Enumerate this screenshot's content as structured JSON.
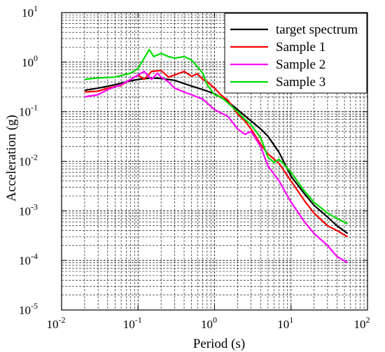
{
  "chart_data": {
    "type": "line",
    "title": "",
    "xlabel": "Period (s)",
    "ylabel": "Acceleration (g)",
    "xscale": "log",
    "yscale": "log",
    "xlim": [
      0.01,
      100
    ],
    "ylim": [
      1e-05,
      10
    ],
    "grid": true,
    "grid_style": "dashed",
    "legend_position": "top-right",
    "x_ticks": [
      {
        "value": 0.01,
        "base": "10",
        "exp": "-2"
      },
      {
        "value": 0.1,
        "base": "10",
        "exp": "-1"
      },
      {
        "value": 1,
        "base": "10",
        "exp": "0"
      },
      {
        "value": 10,
        "base": "10",
        "exp": "1"
      },
      {
        "value": 100,
        "base": "10",
        "exp": "2"
      }
    ],
    "y_ticks": [
      {
        "value": 1e-05,
        "base": "10",
        "exp": "-5"
      },
      {
        "value": 0.0001,
        "base": "10",
        "exp": "-4"
      },
      {
        "value": 0.001,
        "base": "10",
        "exp": "-3"
      },
      {
        "value": 0.01,
        "base": "10",
        "exp": "-2"
      },
      {
        "value": 0.1,
        "base": "10",
        "exp": "-1"
      },
      {
        "value": 1,
        "base": "10",
        "exp": "0"
      },
      {
        "value": 10,
        "base": "10",
        "exp": "1"
      }
    ],
    "series": [
      {
        "name": "target spectrum",
        "color": "#000000",
        "points": [
          [
            0.02,
            0.27
          ],
          [
            0.03,
            0.3
          ],
          [
            0.05,
            0.35
          ],
          [
            0.08,
            0.42
          ],
          [
            0.1,
            0.45
          ],
          [
            0.15,
            0.48
          ],
          [
            0.2,
            0.47
          ],
          [
            0.3,
            0.43
          ],
          [
            0.4,
            0.37
          ],
          [
            0.5,
            0.33
          ],
          [
            0.7,
            0.28
          ],
          [
            1.0,
            0.23
          ],
          [
            1.5,
            0.16
          ],
          [
            2.0,
            0.11
          ],
          [
            3.0,
            0.065
          ],
          [
            4.0,
            0.045
          ],
          [
            5.0,
            0.032
          ],
          [
            7.0,
            0.015
          ],
          [
            10.0,
            0.005
          ],
          [
            15.0,
            0.0022
          ],
          [
            20.0,
            0.0013
          ],
          [
            30.0,
            0.00075
          ],
          [
            40.0,
            0.0005
          ],
          [
            55.0,
            0.00035
          ]
        ]
      },
      {
        "name": "Sample 1",
        "color": "#ff0000",
        "points": [
          [
            0.02,
            0.25
          ],
          [
            0.03,
            0.26
          ],
          [
            0.04,
            0.3
          ],
          [
            0.06,
            0.34
          ],
          [
            0.08,
            0.45
          ],
          [
            0.1,
            0.55
          ],
          [
            0.12,
            0.45
          ],
          [
            0.15,
            0.65
          ],
          [
            0.2,
            0.68
          ],
          [
            0.25,
            0.5
          ],
          [
            0.3,
            0.55
          ],
          [
            0.4,
            0.65
          ],
          [
            0.5,
            0.52
          ],
          [
            0.6,
            0.58
          ],
          [
            0.7,
            0.45
          ],
          [
            0.8,
            0.4
          ],
          [
            1.0,
            0.3
          ],
          [
            1.2,
            0.22
          ],
          [
            1.5,
            0.17
          ],
          [
            2.0,
            0.09
          ],
          [
            2.5,
            0.065
          ],
          [
            3.0,
            0.045
          ],
          [
            4.0,
            0.022
          ],
          [
            5.0,
            0.014
          ],
          [
            7.0,
            0.009
          ],
          [
            10.0,
            0.004
          ],
          [
            15.0,
            0.0016
          ],
          [
            20.0,
            0.0009
          ],
          [
            30.0,
            0.0005
          ],
          [
            40.0,
            0.0004
          ],
          [
            55.0,
            0.0003
          ]
        ]
      },
      {
        "name": "Sample 2",
        "color": "#ff00ff",
        "points": [
          [
            0.02,
            0.2
          ],
          [
            0.03,
            0.22
          ],
          [
            0.04,
            0.28
          ],
          [
            0.06,
            0.35
          ],
          [
            0.08,
            0.45
          ],
          [
            0.1,
            0.55
          ],
          [
            0.12,
            0.65
          ],
          [
            0.15,
            0.45
          ],
          [
            0.18,
            0.6
          ],
          [
            0.2,
            0.5
          ],
          [
            0.25,
            0.4
          ],
          [
            0.3,
            0.3
          ],
          [
            0.4,
            0.25
          ],
          [
            0.5,
            0.22
          ],
          [
            0.7,
            0.18
          ],
          [
            1.0,
            0.11
          ],
          [
            1.5,
            0.08
          ],
          [
            2.0,
            0.045
          ],
          [
            2.5,
            0.035
          ],
          [
            3.0,
            0.04
          ],
          [
            4.0,
            0.02
          ],
          [
            5.0,
            0.008
          ],
          [
            7.0,
            0.004
          ],
          [
            10.0,
            0.0015
          ],
          [
            15.0,
            0.0006
          ],
          [
            20.0,
            0.00035
          ],
          [
            30.0,
            0.0002
          ],
          [
            40.0,
            0.00012
          ],
          [
            55.0,
            9e-05
          ]
        ]
      },
      {
        "name": "Sample 3",
        "color": "#00dd00",
        "points": [
          [
            0.02,
            0.45
          ],
          [
            0.03,
            0.48
          ],
          [
            0.05,
            0.5
          ],
          [
            0.08,
            0.6
          ],
          [
            0.1,
            0.75
          ],
          [
            0.12,
            1.2
          ],
          [
            0.14,
            1.8
          ],
          [
            0.16,
            1.3
          ],
          [
            0.2,
            1.5
          ],
          [
            0.25,
            1.3
          ],
          [
            0.3,
            1.2
          ],
          [
            0.4,
            1.3
          ],
          [
            0.5,
            1.1
          ],
          [
            0.6,
            0.8
          ],
          [
            0.7,
            0.6
          ],
          [
            0.8,
            0.35
          ],
          [
            1.0,
            0.22
          ],
          [
            1.2,
            0.2
          ],
          [
            1.5,
            0.15
          ],
          [
            2.0,
            0.1
          ],
          [
            2.5,
            0.07
          ],
          [
            3.0,
            0.055
          ],
          [
            4.0,
            0.03
          ],
          [
            5.0,
            0.012
          ],
          [
            6.0,
            0.0095
          ],
          [
            7.0,
            0.011
          ],
          [
            10.0,
            0.006
          ],
          [
            15.0,
            0.0025
          ],
          [
            20.0,
            0.0015
          ],
          [
            30.0,
            0.0009
          ],
          [
            40.0,
            0.0007
          ],
          [
            55.0,
            0.00055
          ]
        ]
      }
    ]
  }
}
